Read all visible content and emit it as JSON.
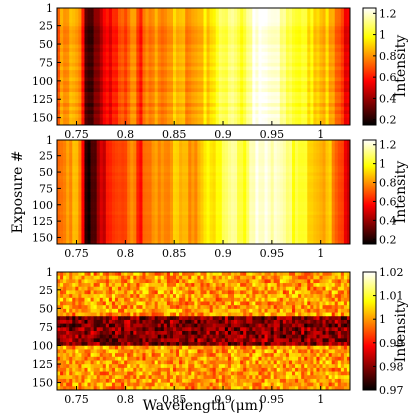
{
  "chart_data": {
    "type": "heatmap",
    "xlabel": "Wavelength (μm)",
    "ylabel": "Exposure #",
    "panels": [
      {
        "xlim": [
          0.73,
          1.03
        ],
        "ylim": [
          1,
          160
        ],
        "xticks": [
          0.75,
          0.8,
          0.85,
          0.9,
          0.95,
          1.0
        ],
        "xticklabels": [
          "0.75",
          "0.8",
          "0.85",
          "0.9",
          "0.95",
          "1"
        ],
        "yticks": [
          1,
          25,
          50,
          75,
          100,
          125,
          150
        ],
        "colorbar": {
          "label": "Intensity",
          "clim": [
            0.15,
            1.25
          ],
          "ticks": [
            "0.2",
            "0.4",
            "0.6",
            "0.8",
            "1",
            "1.2"
          ],
          "tickvalues": [
            0.2,
            0.4,
            0.6,
            0.8,
            1.0,
            1.2
          ]
        },
        "colormap": "hot"
      },
      {
        "xlim": [
          0.73,
          1.03
        ],
        "ylim": [
          1,
          160
        ],
        "xticks": [
          0.75,
          0.8,
          0.85,
          0.9,
          0.95,
          1.0
        ],
        "xticklabels": [
          "0.75",
          "0.8",
          "0.85",
          "0.9",
          "0.95",
          "1"
        ],
        "yticks": [
          1,
          25,
          50,
          75,
          100,
          125,
          150
        ],
        "colorbar": {
          "label": "Intensity",
          "clim": [
            0.15,
            1.25
          ],
          "ticks": [
            "0.2",
            "0.4",
            "0.6",
            "0.8",
            "1",
            "1.2"
          ],
          "tickvalues": [
            0.2,
            0.4,
            0.6,
            0.8,
            1.0,
            1.2
          ]
        },
        "colormap": "hot"
      },
      {
        "xlim": [
          0.73,
          1.03
        ],
        "ylim": [
          1,
          160
        ],
        "xticks": [
          0.75,
          0.8,
          0.85,
          0.9,
          0.95,
          1.0
        ],
        "xticklabels": [
          "0.75",
          "0.8",
          "0.85",
          "0.9",
          "0.95",
          "1"
        ],
        "yticks": [
          1,
          25,
          50,
          75,
          100,
          125,
          150
        ],
        "colorbar": {
          "label": "Intensity",
          "clim": [
            0.97,
            1.02
          ],
          "ticks": [
            "0.97",
            "0.98",
            "0.99",
            "1",
            "1.01",
            "1.02"
          ],
          "tickvalues": [
            0.97,
            0.98,
            0.99,
            1.0,
            1.01,
            1.02
          ]
        },
        "colormap": "hot"
      }
    ],
    "spectrum_profile": {
      "wavelength": [
        0.73,
        0.74,
        0.75,
        0.755,
        0.76,
        0.765,
        0.77,
        0.78,
        0.79,
        0.8,
        0.81,
        0.815,
        0.82,
        0.83,
        0.84,
        0.85,
        0.86,
        0.87,
        0.88,
        0.89,
        0.9,
        0.91,
        0.92,
        0.93,
        0.94,
        0.95,
        0.96,
        0.97,
        0.98,
        0.99,
        1.0,
        1.01,
        1.02,
        1.03
      ],
      "intensity": [
        0.75,
        0.82,
        0.85,
        0.7,
        0.25,
        0.2,
        0.35,
        0.55,
        0.6,
        0.7,
        0.78,
        0.55,
        0.72,
        0.8,
        0.78,
        0.85,
        0.82,
        0.8,
        0.9,
        0.95,
        1.05,
        1.15,
        1.0,
        1.2,
        1.22,
        1.2,
        1.12,
        1.05,
        1.0,
        0.95,
        0.9,
        0.85,
        0.7,
        0.45
      ]
    },
    "systematic_dip": {
      "exposures": [
        62,
        100
      ],
      "depth": 0.02
    }
  }
}
